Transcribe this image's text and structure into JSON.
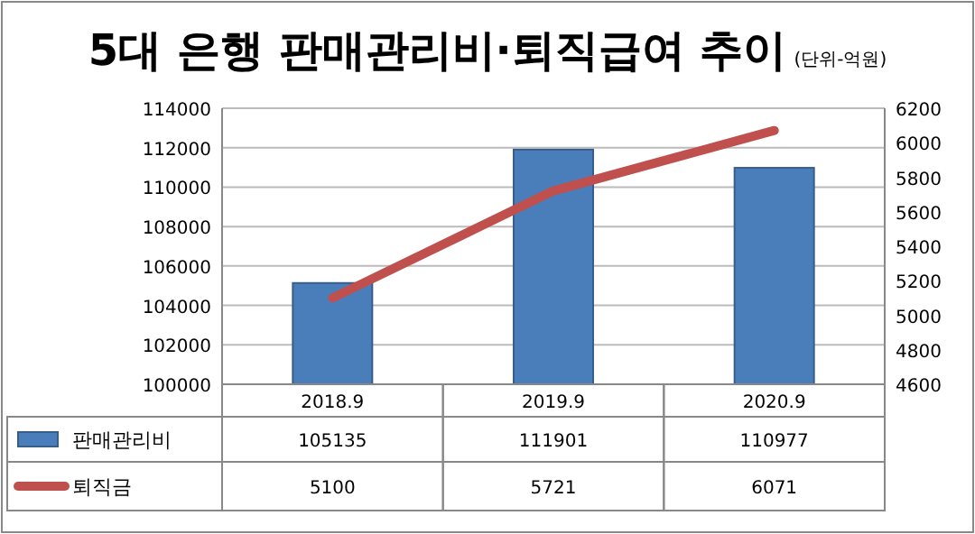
{
  "chart_data": {
    "type": "bar",
    "title": "5대 은행 판매관리비·퇴직급여 추이",
    "subtitle": "(단위-억원)",
    "categories": [
      "2018.9",
      "2019.9",
      "2020.9"
    ],
    "series": [
      {
        "name": "판매관리비",
        "color": "#4a7ebb",
        "values": [
          105135,
          111901,
          110977
        ]
      },
      {
        "name": "퇴직금",
        "type": "line",
        "axis": "y2",
        "color": "#c0504d",
        "values": [
          5100,
          5721,
          6071
        ]
      }
    ],
    "ylim": [
      100000,
      114000
    ],
    "yticks": [
      100000,
      102000,
      104000,
      106000,
      108000,
      110000,
      112000,
      114000
    ],
    "y2lim": [
      4600,
      6200
    ],
    "y2ticks": [
      4600,
      4800,
      5000,
      5200,
      5400,
      5600,
      5800,
      6000,
      6200
    ],
    "grid": "y",
    "data_labels": true,
    "legend": "bottom"
  }
}
